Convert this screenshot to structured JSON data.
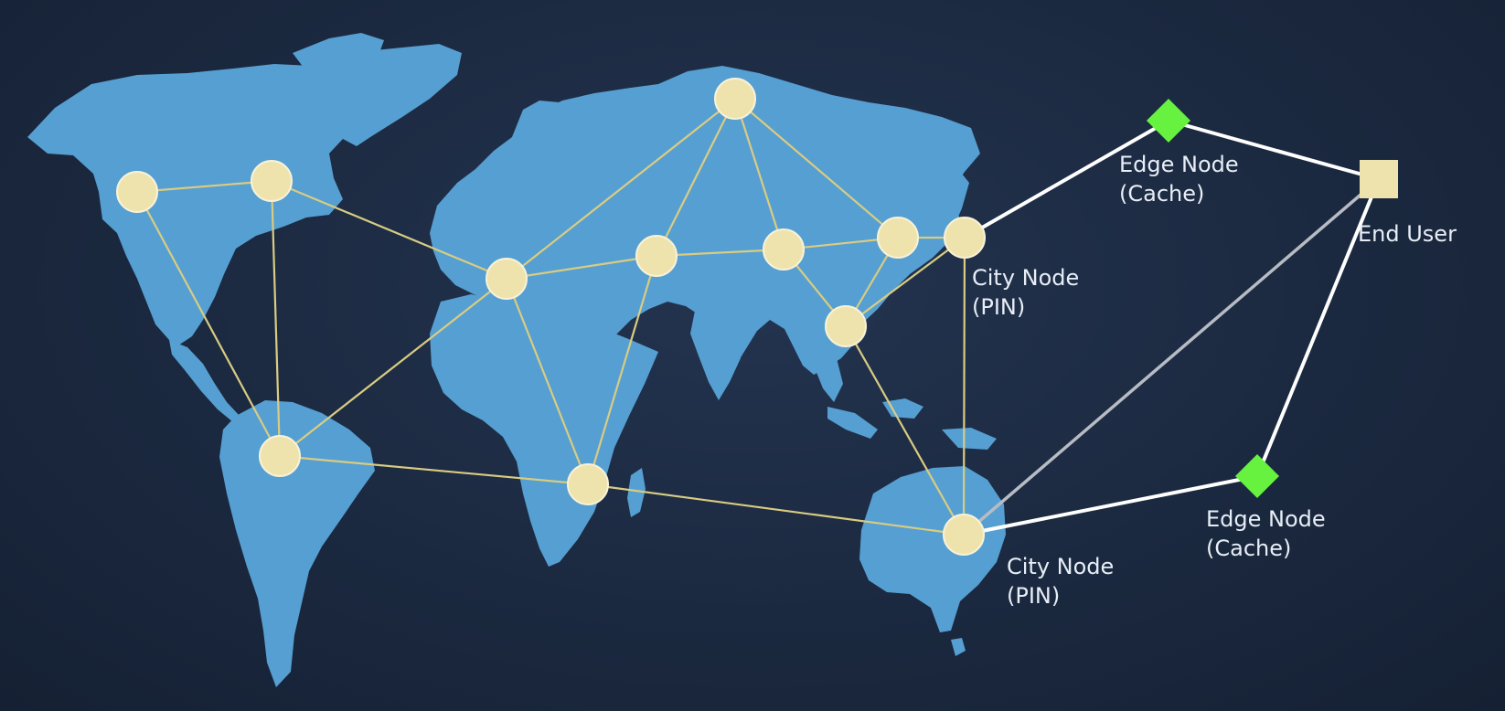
{
  "diagram": {
    "colors": {
      "background": "#1b2940",
      "land": "#569fd2",
      "backbone_link": "#d8cc82",
      "city_node": "#efe3ad",
      "edge_node": "#66f23f",
      "end_user": "#efe3ad",
      "access_link": "#ffffff",
      "direct_link": "#b7bcc4"
    },
    "node_kinds": {
      "city": "circle",
      "edge": "diamond",
      "end_user": "square"
    },
    "labels": {
      "edge_top_line1": "Edge Node",
      "edge_top_line2": "(Cache)",
      "end_user": "End User",
      "city_top_line1": "City Node",
      "city_top_line2": "(PIN)",
      "edge_bottom_line1": "Edge Node",
      "edge_bottom_line2": "(Cache)",
      "city_bottom_line1": "City Node",
      "city_bottom_line2": "(PIN)"
    },
    "nodes": [
      {
        "id": "na_west",
        "kind": "city"
      },
      {
        "id": "na_east",
        "kind": "city"
      },
      {
        "id": "south_america",
        "kind": "city"
      },
      {
        "id": "europe_west",
        "kind": "city"
      },
      {
        "id": "north_russia",
        "kind": "city"
      },
      {
        "id": "middle_east",
        "kind": "city"
      },
      {
        "id": "south_africa",
        "kind": "city"
      },
      {
        "id": "central_asia",
        "kind": "city"
      },
      {
        "id": "east_asia",
        "kind": "city"
      },
      {
        "id": "japan",
        "kind": "city",
        "label": "city_top"
      },
      {
        "id": "southeast_asia",
        "kind": "city"
      },
      {
        "id": "australia",
        "kind": "city",
        "label": "city_bottom"
      },
      {
        "id": "edge_top",
        "kind": "edge",
        "label": "edge_top"
      },
      {
        "id": "edge_bottom",
        "kind": "edge",
        "label": "edge_bottom"
      },
      {
        "id": "end_user",
        "kind": "end_user",
        "label": "end_user"
      }
    ],
    "links": [
      {
        "from": "na_west",
        "to": "na_east",
        "type": "backbone"
      },
      {
        "from": "na_west",
        "to": "south_america",
        "type": "backbone"
      },
      {
        "from": "na_east",
        "to": "south_america",
        "type": "backbone"
      },
      {
        "from": "na_east",
        "to": "europe_west",
        "type": "backbone"
      },
      {
        "from": "south_america",
        "to": "europe_west",
        "type": "backbone"
      },
      {
        "from": "south_america",
        "to": "south_africa",
        "type": "backbone"
      },
      {
        "from": "europe_west",
        "to": "north_russia",
        "type": "backbone"
      },
      {
        "from": "europe_west",
        "to": "middle_east",
        "type": "backbone"
      },
      {
        "from": "europe_west",
        "to": "south_africa",
        "type": "backbone"
      },
      {
        "from": "north_russia",
        "to": "middle_east",
        "type": "backbone"
      },
      {
        "from": "north_russia",
        "to": "central_asia",
        "type": "backbone"
      },
      {
        "from": "north_russia",
        "to": "east_asia",
        "type": "backbone"
      },
      {
        "from": "middle_east",
        "to": "central_asia",
        "type": "backbone"
      },
      {
        "from": "middle_east",
        "to": "south_africa",
        "type": "backbone"
      },
      {
        "from": "central_asia",
        "to": "east_asia",
        "type": "backbone"
      },
      {
        "from": "central_asia",
        "to": "southeast_asia",
        "type": "backbone"
      },
      {
        "from": "east_asia",
        "to": "japan",
        "type": "backbone"
      },
      {
        "from": "east_asia",
        "to": "southeast_asia",
        "type": "backbone"
      },
      {
        "from": "japan",
        "to": "southeast_asia",
        "type": "backbone"
      },
      {
        "from": "japan",
        "to": "australia",
        "type": "backbone"
      },
      {
        "from": "southeast_asia",
        "to": "australia",
        "type": "backbone"
      },
      {
        "from": "south_africa",
        "to": "australia",
        "type": "backbone"
      },
      {
        "from": "japan",
        "to": "edge_top",
        "type": "access"
      },
      {
        "from": "edge_top",
        "to": "end_user",
        "type": "access"
      },
      {
        "from": "australia",
        "to": "edge_bottom",
        "type": "access"
      },
      {
        "from": "edge_bottom",
        "to": "end_user",
        "type": "access"
      },
      {
        "from": "australia",
        "to": "end_user",
        "type": "direct"
      }
    ]
  }
}
